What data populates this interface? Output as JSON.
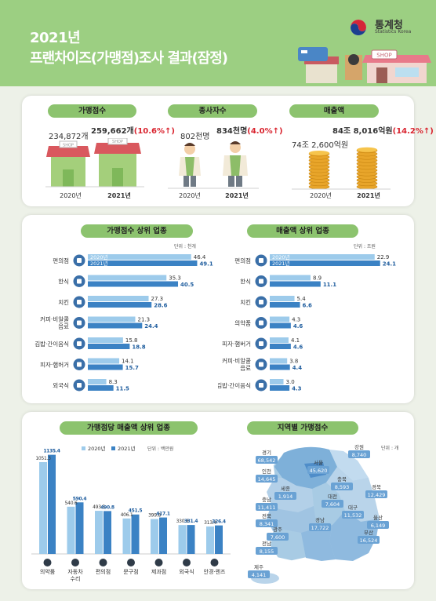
{
  "header": {
    "title1": "2021년",
    "title2": "프랜차이즈(가맹점)조사 결과(잠정)",
    "logo_name": "통계청",
    "logo_sub": "Statistics Korea",
    "shop_sign": "SHOP"
  },
  "summary": [
    {
      "title": "가맹점수",
      "prev_label": "234,872개",
      "curr_value": "259,662개",
      "curr_change": "(10.6%↑)",
      "prev_year": "2020년",
      "curr_year": "2021년",
      "prev_num": 234872,
      "curr_num": 259662,
      "shop_sign": "SHOP"
    },
    {
      "title": "종사자수",
      "prev_label": "802천명",
      "curr_value": "834천명",
      "curr_change": "(4.0%↑)",
      "prev_year": "2020년",
      "curr_year": "2021년",
      "prev_num": 802,
      "curr_num": 834
    },
    {
      "title": "매출액",
      "prev_label": "74조 2,600억원",
      "curr_value": "84조 8,016억원",
      "curr_change": "(14.2%↑)",
      "prev_year": "2020년",
      "curr_year": "2021년",
      "prev_num": 742600,
      "curr_num": 848016
    }
  ],
  "chart_data": [
    {
      "type": "bar",
      "orientation": "horizontal",
      "title": "가맹점수 상위 업종",
      "unit": "단위 : 천개",
      "legend": [
        "2020년",
        "2021년"
      ],
      "categories": [
        "편의점",
        "한식",
        "치킨",
        "커피·비알콜 음료",
        "김밥·간이음식",
        "피자·햄버거",
        "외국식"
      ],
      "series": [
        {
          "name": "2020년",
          "values": [
            46.4,
            35.3,
            27.3,
            21.3,
            15.8,
            14.1,
            8.3
          ]
        },
        {
          "name": "2021년",
          "values": [
            49.1,
            40.5,
            28.6,
            24.4,
            18.8,
            15.7,
            11.5
          ]
        }
      ],
      "icons": [
        "convenience-icon",
        "bowl-icon",
        "chicken-icon",
        "cup-icon",
        "gimbap-icon",
        "burger-icon",
        "cutlery-icon"
      ]
    },
    {
      "type": "bar",
      "orientation": "horizontal",
      "title": "매출액 상위 업종",
      "unit": "단위 : 조원",
      "legend": [
        "2020년",
        "2021년"
      ],
      "categories": [
        "편의점",
        "한식",
        "치킨",
        "의약품",
        "피자·햄버거",
        "커피·비알콜 음료",
        "김밥·간이음식"
      ],
      "series": [
        {
          "name": "2020년",
          "values": [
            22.9,
            8.9,
            5.4,
            4.3,
            4.1,
            3.8,
            3.0
          ]
        },
        {
          "name": "2021년",
          "values": [
            24.1,
            11.1,
            6.6,
            4.6,
            4.6,
            4.4,
            4.3
          ]
        }
      ],
      "icons": [
        "convenience-icon",
        "bowl-icon",
        "chicken-icon",
        "medicine-icon",
        "burger-icon",
        "cup-icon",
        "gimbap-icon"
      ]
    },
    {
      "type": "bar",
      "orientation": "vertical",
      "title": "가맹점당 매출액 상위 업종",
      "unit": "단위 : 백만원",
      "legend": [
        "2020년",
        "2021년"
      ],
      "categories": [
        "의약품",
        "자동차 수리",
        "편의점",
        "문구점",
        "제과점",
        "외국식",
        "안경·렌즈"
      ],
      "series": [
        {
          "name": "2020년",
          "values": [
            1051.3,
            540.6,
            493.5,
            406.1,
            399.8,
            330.8,
            313.4
          ]
        },
        {
          "name": "2021년",
          "values": [
            1135.4,
            590.4,
            490.8,
            451.5,
            417.1,
            331.4,
            326.4
          ]
        }
      ],
      "icons": [
        "medicine-icon",
        "car-repair-icon",
        "convenience-icon",
        "stationery-icon",
        "bakery-icon",
        "cutlery-icon",
        "glasses-icon"
      ]
    },
    {
      "type": "map",
      "title": "지역별 가맹점수",
      "unit": "단위 : 개",
      "regions": [
        {
          "name": "경기",
          "value": "68,542"
        },
        {
          "name": "강원",
          "value": "8,740"
        },
        {
          "name": "서울",
          "value": "45,620"
        },
        {
          "name": "인천",
          "value": "14,645"
        },
        {
          "name": "충북",
          "value": "8,593"
        },
        {
          "name": "경북",
          "value": "12,429"
        },
        {
          "name": "세종",
          "value": "1,914"
        },
        {
          "name": "대전",
          "value": "7,604"
        },
        {
          "name": "충남",
          "value": "11,411"
        },
        {
          "name": "대구",
          "value": "11,532"
        },
        {
          "name": "전북",
          "value": "8,341"
        },
        {
          "name": "울산",
          "value": "6,149"
        },
        {
          "name": "경남",
          "value": "17,722"
        },
        {
          "name": "광주",
          "value": "7,600"
        },
        {
          "name": "부산",
          "value": "16,524"
        },
        {
          "name": "전남",
          "value": "8,155"
        },
        {
          "name": "제주",
          "value": "4,141"
        }
      ]
    }
  ]
}
